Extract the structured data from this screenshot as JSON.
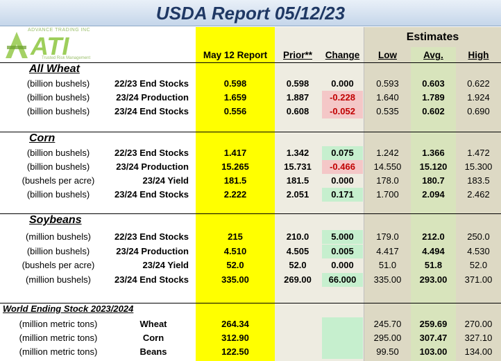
{
  "title": "USDA Report 05/12/23",
  "logo": {
    "mark": "ATI",
    "company": "ADVANCE TRADING INC",
    "tagline": "Trusted Risk Management"
  },
  "columns": {
    "report": "May 12 Report",
    "prior": "Prior**",
    "change": "Change",
    "estimates": "Estimates",
    "low": "Low",
    "avg": "Avg.",
    "high": "High"
  },
  "sections": [
    {
      "title": "All Wheat",
      "rows": [
        [
          "(billion bushels)",
          "22/23 End Stocks",
          "0.598",
          "0.598",
          "0.000",
          "0.593",
          "0.603",
          "0.622"
        ],
        [
          "(billion bushels)",
          "23/24 Production",
          "1.659",
          "1.887",
          "-0.228",
          "1.640",
          "1.789",
          "1.924"
        ],
        [
          "(billion bushels)",
          "23/24 End Stocks",
          "0.556",
          "0.608",
          "-0.052",
          "0.535",
          "0.602",
          "0.690"
        ]
      ]
    },
    {
      "title": "Corn",
      "rows": [
        [
          "(billion bushels)",
          "22/23 End Stocks",
          "1.417",
          "1.342",
          "0.075",
          "1.242",
          "1.366",
          "1.472"
        ],
        [
          "(billion bushels)",
          "23/24 Production",
          "15.265",
          "15.731",
          "-0.466",
          "14.550",
          "15.120",
          "15.300"
        ],
        [
          "(bushels per  acre)",
          "23/24 Yield",
          "181.5",
          "181.5",
          "0.000",
          "178.0",
          "180.7",
          "183.5"
        ],
        [
          "(billion bushels)",
          "23/24 End Stocks",
          "2.222",
          "2.051",
          "0.171",
          "1.700",
          "2.094",
          "2.462"
        ]
      ]
    },
    {
      "title": "Soybeans",
      "rows": [
        [
          "(million bushels)",
          "22/23 End Stocks",
          "215",
          "210.0",
          "5.000",
          "179.0",
          "212.0",
          "250.0"
        ],
        [
          "(billion bushels)",
          "23/24 Production",
          "4.510",
          "4.505",
          "0.005",
          "4.417",
          "4.494",
          "4.530"
        ],
        [
          "(bushels per  acre)",
          "23/24 Yield",
          "52.0",
          "52.0",
          "0.000",
          "51.0",
          "51.8",
          "52.0"
        ],
        [
          "(million bushels)",
          "23/24 End Stocks",
          "335.00",
          "269.00",
          "66.000",
          "335.00",
          "293.00",
          "371.00"
        ]
      ]
    },
    {
      "title": "World Ending Stock 2023/2024",
      "rows": [
        [
          "(million metric tons)",
          "Wheat",
          "264.34",
          null,
          null,
          "245.70",
          "259.69",
          "270.00"
        ],
        [
          "(million metric tons)",
          "Corn",
          "312.90",
          null,
          null,
          "295.00",
          "307.47",
          "327.10"
        ],
        [
          "(million metric tons)",
          "Beans",
          "122.50",
          null,
          null,
          "99.50",
          "103.00",
          "134.00"
        ]
      ]
    }
  ]
}
